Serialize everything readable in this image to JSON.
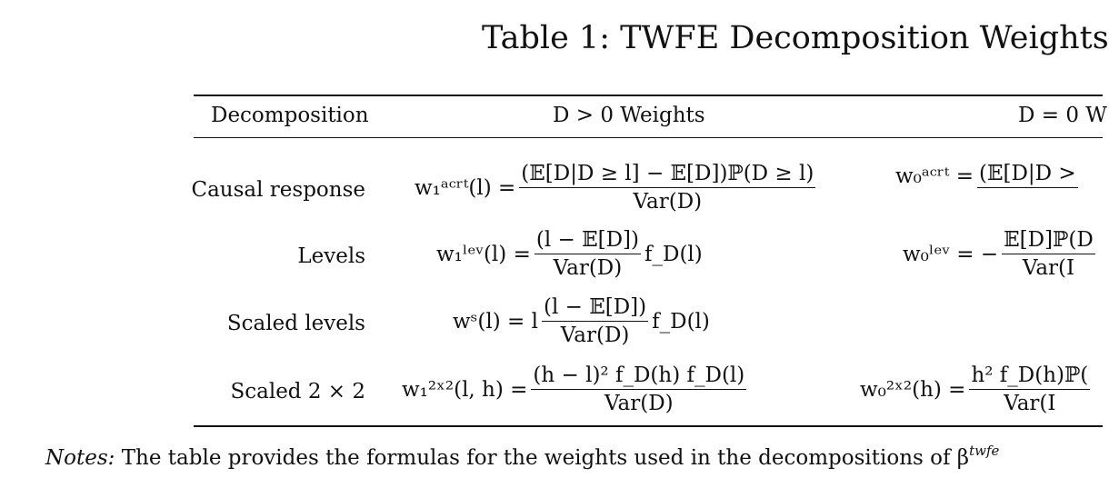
{
  "table": {
    "title": "Table 1: TWFE Decomposition Weights",
    "headers": [
      "Decomposition",
      "D > 0 Weights",
      "D = 0 W"
    ],
    "rows": [
      {
        "label": "Causal response",
        "w1_left": "w₁ᵃᶜʳᵗ(l) =",
        "w1_num": "(𝔼[D|D ≥ l] − 𝔼[D])ℙ(D ≥ l)",
        "w1_den": "Var(D)",
        "w0_left": "w₀ᵃᶜʳᵗ =",
        "w0_num": "(𝔼[D|D >",
        "w0_den": ""
      },
      {
        "label": "Levels",
        "w1_left": "w₁ˡᵉᵛ(l) =",
        "w1_num": "(l − 𝔼[D])",
        "w1_den": "Var(D)",
        "w1_tail": "f_D(l)",
        "w0_left": "w₀ˡᵉᵛ = −",
        "w0_num": "𝔼[D]ℙ(D",
        "w0_den": "Var(I"
      },
      {
        "label": "Scaled levels",
        "w1_left": "wˢ(l) = l",
        "w1_num": "(l − 𝔼[D])",
        "w1_den": "Var(D)",
        "w1_tail": "f_D(l)"
      },
      {
        "label": "Scaled 2 × 2",
        "w1_left": "w₁²ˣ²(l, h) =",
        "w1_num": "(h − l)² f_D(h) f_D(l)",
        "w1_den": "Var(D)",
        "w0_left": "w₀²ˣ²(h) =",
        "w0_num": "h² f_D(h)ℙ(",
        "w0_den": "Var(I"
      }
    ],
    "notes_label": "Notes:",
    "notes_text": "The table provides the formulas for the weights used in the decompositions of β"
  }
}
